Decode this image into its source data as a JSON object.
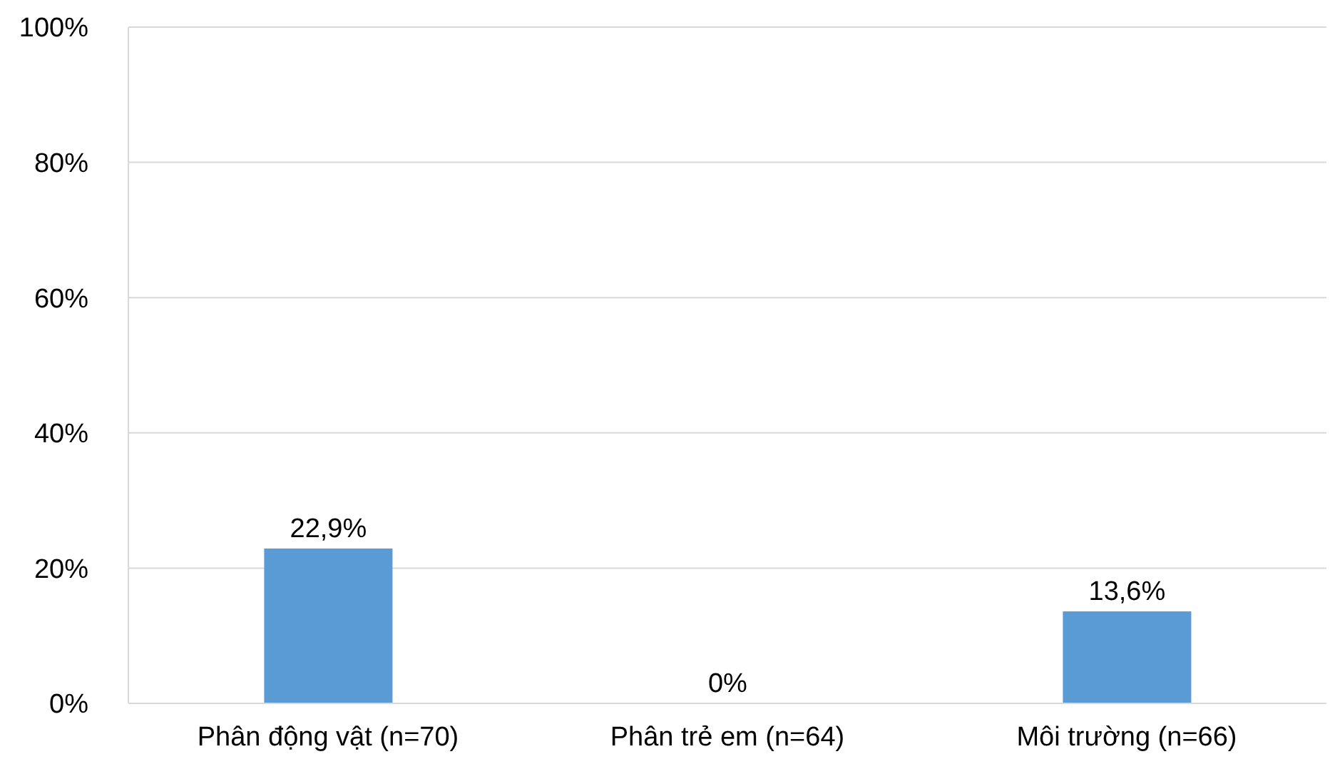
{
  "chart_data": {
    "type": "bar",
    "categories": [
      "Phân động vật (n=70)",
      "Phân trẻ em (n=64)",
      "Môi trường (n=66)"
    ],
    "values": [
      22.9,
      0,
      13.6
    ],
    "value_labels": [
      "22,9%",
      "0%",
      "13,6%"
    ],
    "color": "#5b9bd5",
    "ylim": [
      0,
      100
    ],
    "yticks": [
      {
        "value": 0,
        "label": "0%"
      },
      {
        "value": 20,
        "label": "20%"
      },
      {
        "value": 40,
        "label": "40%"
      },
      {
        "value": 60,
        "label": "60%"
      },
      {
        "value": 80,
        "label": "80%"
      },
      {
        "value": 100,
        "label": "100%"
      }
    ],
    "grid": "y"
  }
}
